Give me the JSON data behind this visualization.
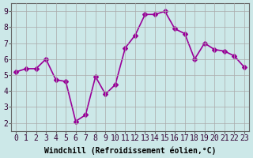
{
  "x": [
    0,
    1,
    2,
    3,
    4,
    5,
    6,
    7,
    8,
    9,
    10,
    11,
    12,
    13,
    14,
    15,
    16,
    17,
    18,
    19,
    20,
    21,
    22,
    23
  ],
  "y": [
    5.2,
    5.4,
    5.4,
    6.0,
    4.7,
    4.6,
    2.1,
    2.5,
    4.9,
    3.8,
    4.4,
    6.7,
    7.5,
    8.8,
    8.8,
    9.0,
    7.9,
    7.6,
    6.0,
    7.0,
    6.6,
    6.5,
    6.2,
    5.5
  ],
  "line_color": "#990099",
  "marker": "D",
  "marker_size": 3,
  "bg_color": "#cce8e8",
  "grid_color": "#aaaaaa",
  "xlabel": "Windchill (Refroidissement éolien,°C)",
  "xlim": [
    -0.5,
    23.5
  ],
  "ylim": [
    1.5,
    9.5
  ],
  "xticks": [
    0,
    1,
    2,
    3,
    4,
    5,
    6,
    7,
    8,
    9,
    10,
    11,
    12,
    13,
    14,
    15,
    16,
    17,
    18,
    19,
    20,
    21,
    22,
    23
  ],
  "yticks": [
    2,
    3,
    4,
    5,
    6,
    7,
    8,
    9
  ],
  "xlabel_fontsize": 7,
  "tick_fontsize": 7,
  "line_width": 1.2
}
